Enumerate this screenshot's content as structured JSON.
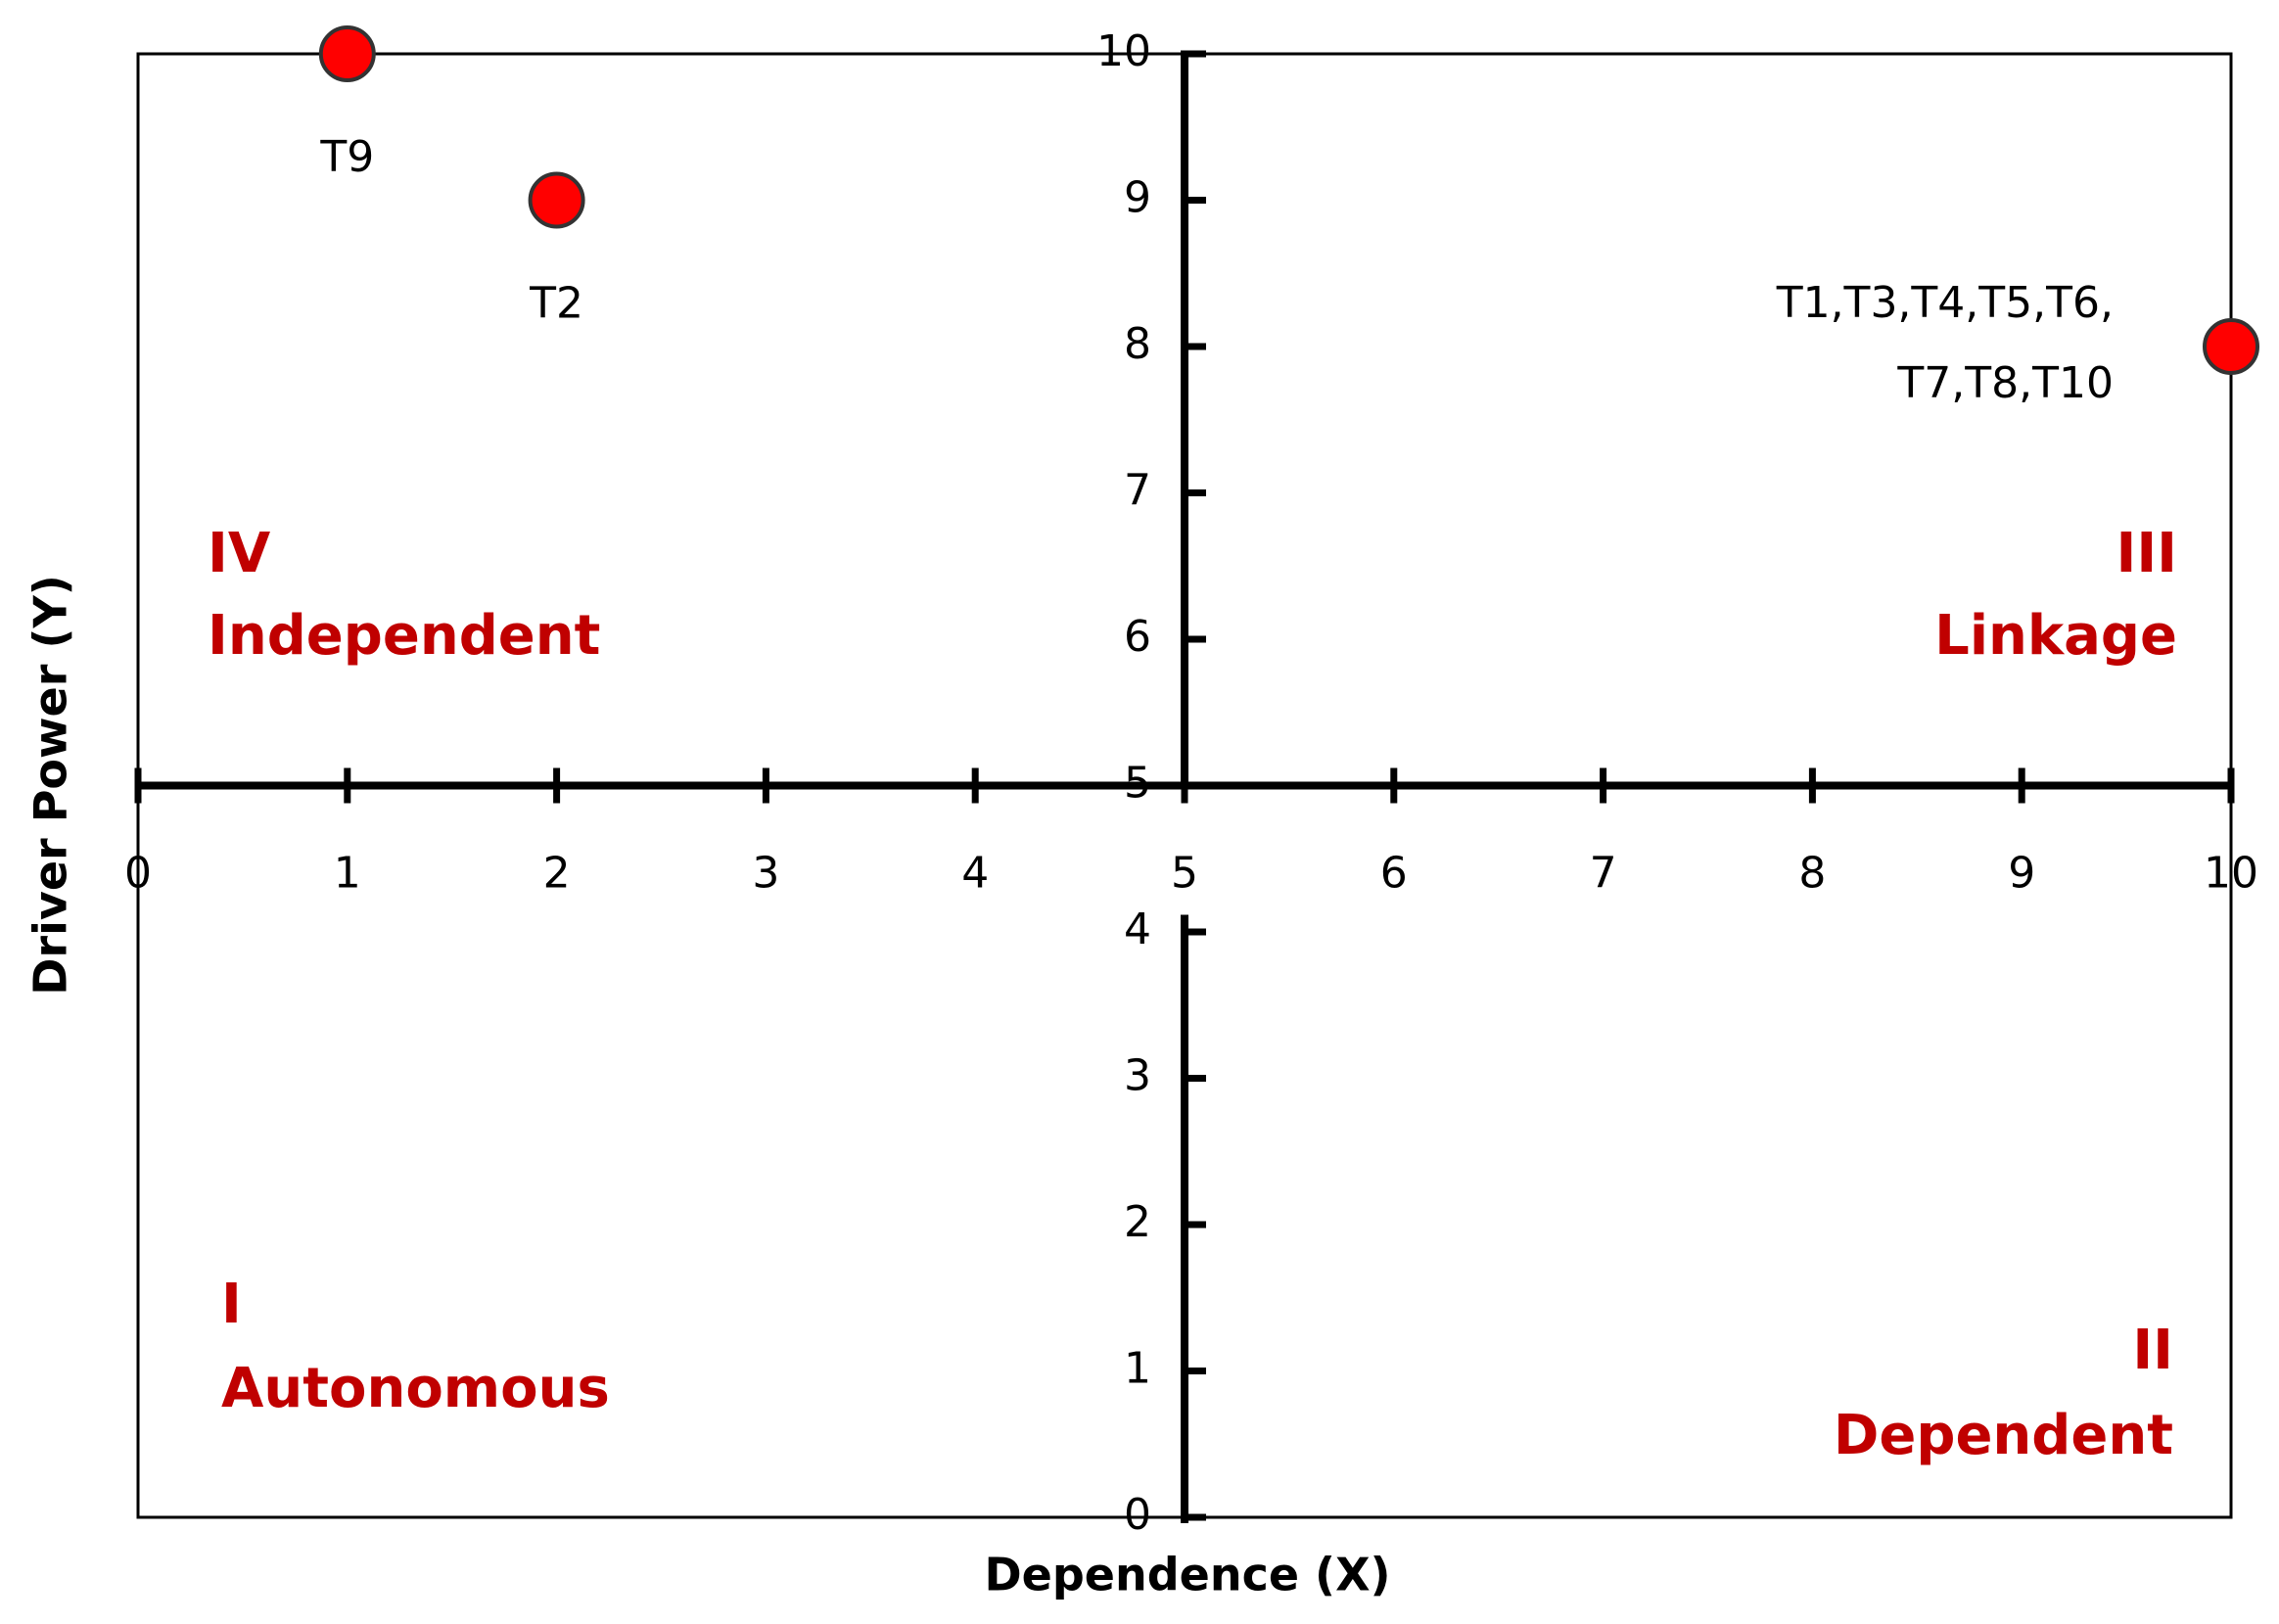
{
  "chart_data": {
    "type": "scatter",
    "x_label": "Dependence (X)",
    "y_label": "Driver Power (Y)",
    "x": [
      1,
      2,
      10
    ],
    "values": [
      10,
      9,
      8
    ],
    "point_labels": [
      [
        "T9"
      ],
      [
        "T2"
      ],
      [
        "T1,T3,T4,T5,T6,",
        "T7,T8,T10"
      ]
    ],
    "color": "#ff0000",
    "xlim": [
      0,
      10
    ],
    "ylim": [
      0,
      10
    ],
    "xticks": [
      0,
      1,
      2,
      3,
      4,
      5,
      6,
      7,
      8,
      9,
      10
    ],
    "yticks": [
      0,
      1,
      2,
      3,
      4,
      5,
      6,
      7,
      8,
      9,
      10
    ],
    "quadrants": [
      {
        "numeral": "IV",
        "name": "Independent"
      },
      {
        "numeral": "III",
        "name": "Linkage"
      },
      {
        "numeral": "I",
        "name": "Autonomous"
      },
      {
        "numeral": "II",
        "name": "Dependent"
      }
    ],
    "quadrant_color": "#c00000"
  }
}
